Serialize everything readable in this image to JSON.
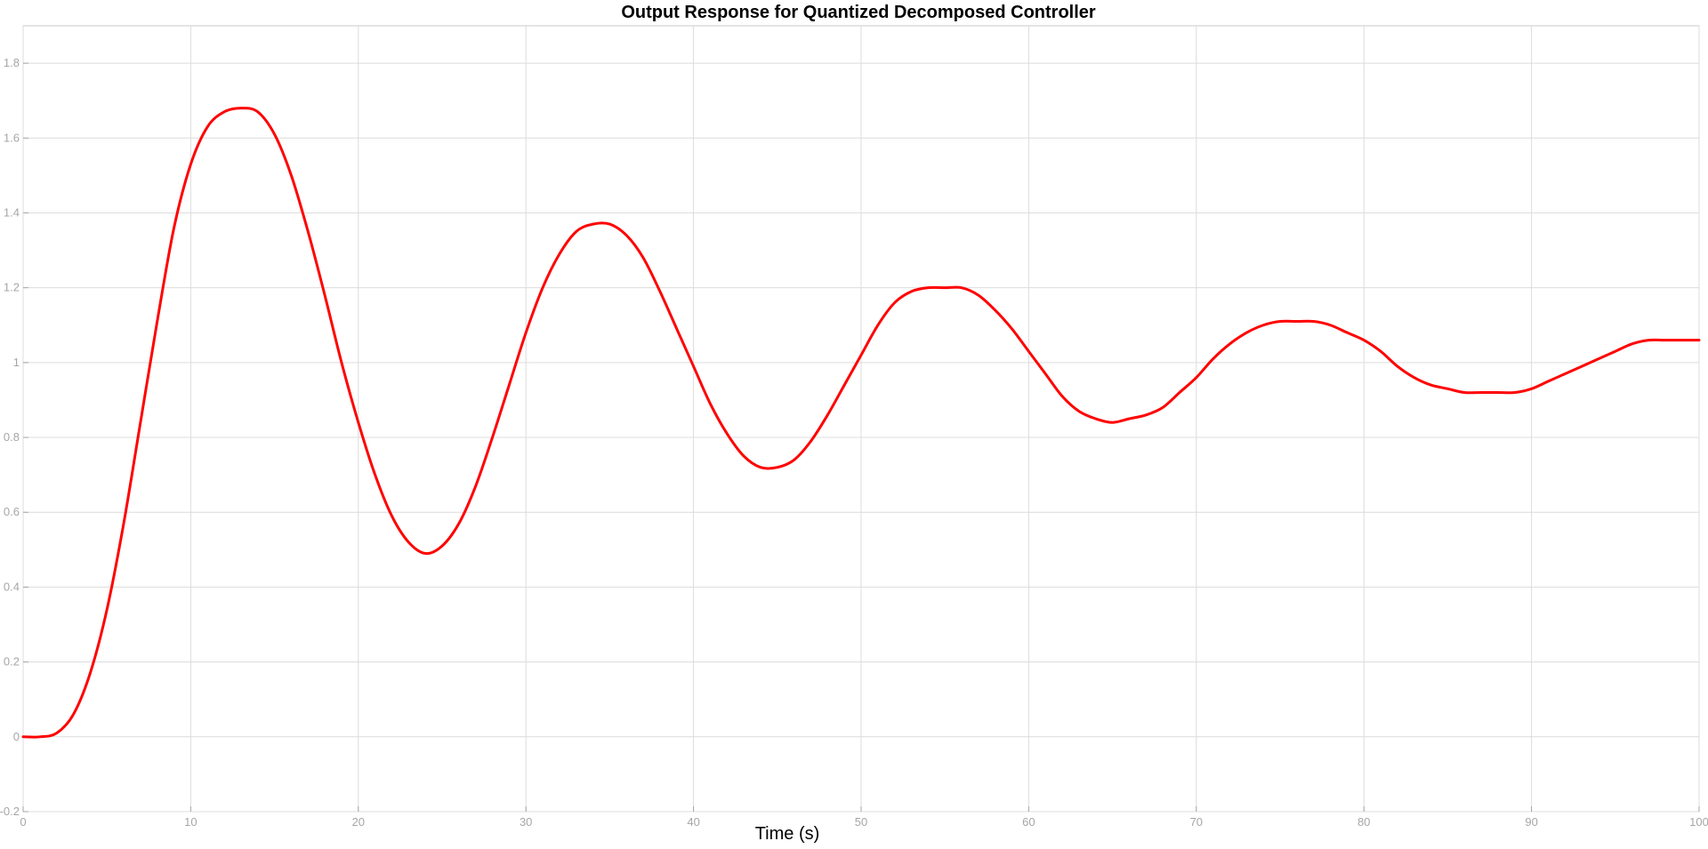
{
  "chart_data": {
    "type": "line",
    "title": "Output Response for Quantized Decomposed Controller",
    "xlabel": "Time (s)",
    "ylabel": "",
    "xlim": [
      0,
      100
    ],
    "ylim": [
      -0.2,
      1.9
    ],
    "xticks": [
      0,
      10,
      20,
      30,
      40,
      50,
      60,
      70,
      80,
      90,
      100
    ],
    "xtick_labels": [
      "0",
      "10",
      "20",
      "30",
      "40",
      "50",
      "60",
      "70",
      "80",
      "90",
      "100"
    ],
    "yticks": [
      -0.2,
      0,
      0.2,
      0.4,
      0.6,
      0.8,
      1.0,
      1.2,
      1.4,
      1.6,
      1.8
    ],
    "ytick_labels": [
      "-0.2",
      "0",
      "0.2",
      "0.4",
      "0.6",
      "0.8",
      "1",
      "1.2",
      "1.4",
      "1.6",
      "1.8"
    ],
    "grid": true,
    "series": [
      {
        "color": "#ff0000",
        "x": [
          0,
          1,
          2,
          3,
          4,
          5,
          6,
          7,
          8,
          9,
          10,
          11,
          12,
          13,
          14,
          15,
          16,
          17,
          18,
          19,
          20,
          21,
          22,
          23,
          24,
          25,
          26,
          27,
          28,
          29,
          30,
          31,
          32,
          33,
          34,
          35,
          36,
          37,
          38,
          39,
          40,
          41,
          42,
          43,
          44,
          45,
          46,
          47,
          48,
          49,
          50,
          51,
          52,
          53,
          54,
          55,
          56,
          57,
          58,
          59,
          60,
          61,
          62,
          63,
          64,
          65,
          66,
          67,
          68,
          69,
          70,
          71,
          72,
          73,
          74,
          75,
          76,
          77,
          78,
          79,
          80,
          81,
          82,
          83,
          84,
          85,
          86,
          87,
          88,
          89,
          90,
          91,
          92,
          93,
          94,
          95,
          96,
          97,
          98,
          99,
          100
        ],
        "y": [
          0.0,
          0.0,
          0.01,
          0.06,
          0.17,
          0.34,
          0.57,
          0.84,
          1.11,
          1.36,
          1.53,
          1.63,
          1.67,
          1.68,
          1.67,
          1.61,
          1.5,
          1.35,
          1.18,
          1.0,
          0.84,
          0.7,
          0.59,
          0.52,
          0.49,
          0.51,
          0.57,
          0.67,
          0.8,
          0.94,
          1.08,
          1.2,
          1.29,
          1.35,
          1.37,
          1.37,
          1.34,
          1.28,
          1.19,
          1.09,
          0.99,
          0.89,
          0.81,
          0.75,
          0.72,
          0.72,
          0.74,
          0.79,
          0.86,
          0.94,
          1.02,
          1.1,
          1.16,
          1.19,
          1.2,
          1.2,
          1.2,
          1.18,
          1.14,
          1.09,
          1.03,
          0.97,
          0.91,
          0.87,
          0.85,
          0.84,
          0.85,
          0.86,
          0.88,
          0.92,
          0.96,
          1.01,
          1.05,
          1.08,
          1.1,
          1.11,
          1.11,
          1.11,
          1.1,
          1.08,
          1.06,
          1.03,
          0.99,
          0.96,
          0.94,
          0.93,
          0.92,
          0.92,
          0.92,
          0.92,
          0.93,
          0.95,
          0.97,
          0.99,
          1.01,
          1.03,
          1.05,
          1.06,
          1.06,
          1.06,
          1.06
        ]
      }
    ]
  }
}
